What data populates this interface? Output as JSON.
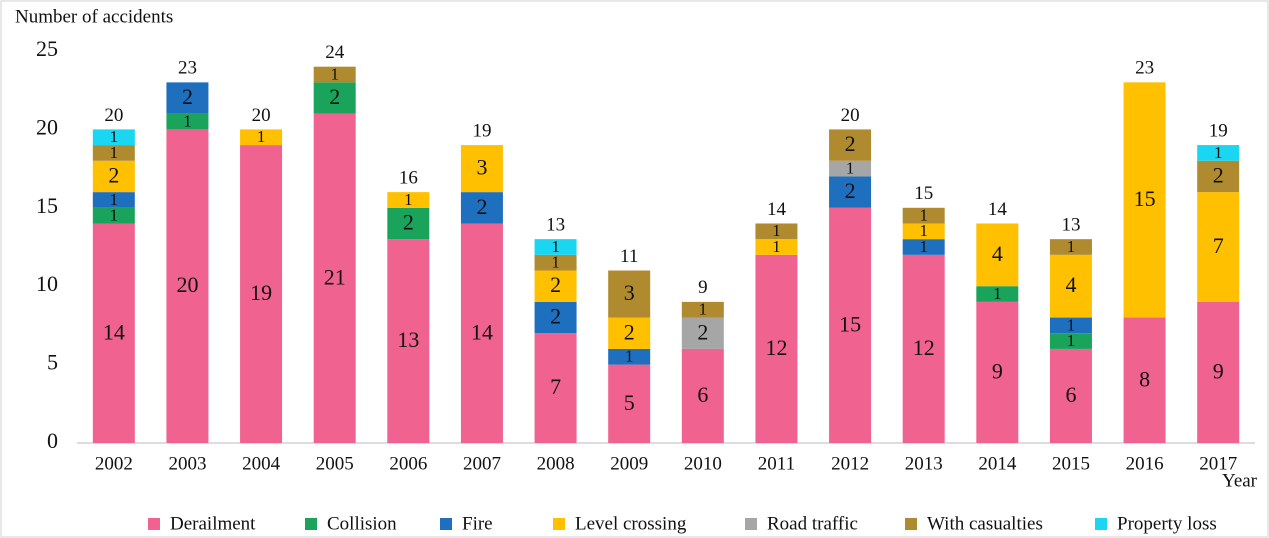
{
  "chart_data": {
    "type": "bar",
    "stacked": true,
    "y_label": "Number of accidents",
    "x_label": "Year",
    "categories": [
      "2002",
      "2003",
      "2004",
      "2005",
      "2006",
      "2007",
      "2008",
      "2009",
      "2010",
      "2011",
      "2012",
      "2013",
      "2014",
      "2015",
      "2016",
      "2017"
    ],
    "series": [
      {
        "name": "Derailment",
        "color": "#f0628f",
        "values": [
          14,
          20,
          19,
          21,
          13,
          14,
          7,
          5,
          6,
          12,
          15,
          12,
          9,
          6,
          8,
          9
        ]
      },
      {
        "name": "Collision",
        "color": "#1aa35a",
        "values": [
          1,
          1,
          0,
          2,
          2,
          0,
          0,
          0,
          0,
          0,
          0,
          0,
          1,
          1,
          0,
          0
        ]
      },
      {
        "name": "Fire",
        "color": "#1f6fbf",
        "values": [
          1,
          2,
          0,
          0,
          0,
          2,
          2,
          1,
          0,
          0,
          2,
          1,
          0,
          1,
          0,
          0
        ]
      },
      {
        "name": "Level crossing",
        "color": "#ffc000",
        "values": [
          2,
          0,
          1,
          0,
          1,
          3,
          2,
          2,
          0,
          1,
          0,
          1,
          4,
          4,
          15,
          7
        ]
      },
      {
        "name": "Road traffic",
        "color": "#a6a6a6",
        "values": [
          0,
          0,
          0,
          0,
          0,
          0,
          0,
          0,
          2,
          0,
          1,
          0,
          0,
          0,
          0,
          0
        ]
      },
      {
        "name": "With casualties",
        "color": "#b08a2e",
        "values": [
          1,
          0,
          0,
          1,
          0,
          0,
          1,
          3,
          1,
          1,
          2,
          1,
          0,
          1,
          0,
          2
        ]
      },
      {
        "name": "Property loss",
        "color": "#1ad6f0",
        "values": [
          1,
          0,
          0,
          0,
          0,
          0,
          1,
          0,
          0,
          0,
          0,
          0,
          0,
          0,
          0,
          1
        ]
      }
    ],
    "totals": [
      20,
      23,
      20,
      24,
      16,
      19,
      13,
      11,
      9,
      14,
      20,
      15,
      14,
      13,
      23,
      19
    ],
    "ylim": [
      0,
      25
    ],
    "yticks": [
      0,
      5,
      10,
      15,
      20,
      25
    ],
    "grid": false,
    "legend": "bottom"
  }
}
